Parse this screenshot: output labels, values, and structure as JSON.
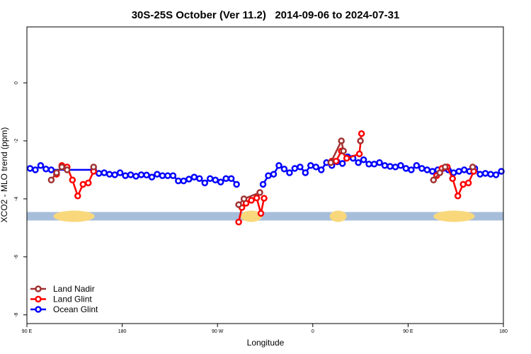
{
  "chart_data": {
    "type": "line",
    "title": "30S-25S October (Ver 11.2)   2014-09-06 to 2024-07-31",
    "x_label": "Longitude",
    "y_label": "XCO2 - MLO trend (ppm)",
    "xlim": [
      90,
      540
    ],
    "xticks": [
      {
        "value": 90,
        "label": "90 E"
      },
      {
        "value": 180,
        "label": "180"
      },
      {
        "value": 270,
        "label": "90 W"
      },
      {
        "value": 360,
        "label": "0"
      },
      {
        "value": 450,
        "label": "90 E"
      },
      {
        "value": 540,
        "label": "180"
      }
    ],
    "ylim": [
      -8.3,
      1.93
    ],
    "yticks": [
      0,
      -2,
      -4,
      -6,
      -8
    ],
    "mask": {
      "y": -4.6,
      "ocean_color": "#a7bedb",
      "land_color": "#f9d87c",
      "land": [
        [
          115,
          154
        ],
        [
          292,
          312
        ],
        [
          376,
          392
        ],
        [
          474,
          513
        ]
      ]
    },
    "legend": "bottom-left",
    "series": [
      {
        "name": "Land Nadir",
        "color": "#a03232",
        "x": [
          113,
          118,
          123,
          128,
          null,
          153,
          null,
          290,
          295,
          310,
          null,
          377,
          387,
          389,
          null,
          405,
          null,
          474,
          480,
          485,
          null,
          511
        ],
        "values": [
          -3.35,
          -3.1,
          -2.9,
          -3.0,
          null,
          -2.9,
          null,
          -4.2,
          -4.0,
          -3.78,
          null,
          -2.75,
          -2.0,
          -2.35,
          null,
          -2.0,
          null,
          -3.35,
          -3.1,
          -2.9,
          null,
          -2.9
        ]
      },
      {
        "name": "Land Glint",
        "color": "#ff0000",
        "x": [
          118,
          123,
          128,
          133,
          138,
          143,
          148,
          153,
          null,
          290,
          293,
          297,
          302,
          307,
          311,
          314,
          null,
          378,
          382,
          387,
          392,
          404,
          406,
          null,
          477,
          482,
          487,
          492,
          497,
          502,
          507,
          512
        ],
        "values": [
          -3.15,
          -2.85,
          -2.9,
          -3.35,
          -3.9,
          -3.5,
          -3.45,
          -3.05,
          null,
          -4.8,
          -4.3,
          -4.15,
          -4.05,
          -3.97,
          -4.5,
          -3.98,
          null,
          -2.7,
          -2.7,
          -2.35,
          -2.6,
          -2.45,
          -1.75,
          null,
          -3.2,
          -2.95,
          -2.9,
          -3.3,
          -3.9,
          -3.5,
          -3.45,
          -3.05
        ]
      },
      {
        "name": "Ocean Glint",
        "color": "#0000ff",
        "x": [
          93,
          98,
          103,
          108,
          113,
          153,
          158,
          163,
          168,
          173,
          178,
          183,
          188,
          193,
          198,
          203,
          208,
          213,
          218,
          223,
          228,
          233,
          238,
          243,
          248,
          253,
          258,
          263,
          268,
          273,
          278,
          283,
          288,
          null,
          313,
          318,
          323,
          328,
          333,
          338,
          343,
          348,
          353,
          358,
          363,
          368,
          373,
          378,
          383,
          388,
          393,
          398,
          403,
          408,
          413,
          418,
          423,
          428,
          433,
          438,
          443,
          448,
          453,
          458,
          463,
          468,
          473,
          478,
          483,
          488,
          493,
          498,
          503,
          508,
          513,
          518,
          523,
          528,
          533,
          538
        ],
        "values": [
          -2.95,
          -3.0,
          -2.85,
          -2.97,
          -3.0,
          -3.0,
          -3.12,
          -3.1,
          -3.15,
          -3.17,
          -3.1,
          -3.2,
          -3.17,
          -3.22,
          -3.17,
          -3.18,
          -3.25,
          -3.15,
          -3.2,
          -3.2,
          -3.2,
          -3.38,
          -3.38,
          -3.32,
          -3.25,
          -3.3,
          -3.45,
          -3.3,
          -3.35,
          -3.42,
          -3.3,
          -3.3,
          -3.5,
          null,
          -3.5,
          -3.2,
          -3.15,
          -2.85,
          -2.97,
          -3.1,
          -2.95,
          -2.9,
          -3.1,
          -2.85,
          -2.9,
          -3.0,
          -2.75,
          -2.85,
          -2.72,
          -2.78,
          -2.55,
          -2.6,
          -2.75,
          -2.65,
          -2.8,
          -2.8,
          -2.75,
          -2.85,
          -2.88,
          -2.9,
          -2.85,
          -2.95,
          -3.0,
          -2.85,
          -2.95,
          -3.0,
          -3.05,
          -3.0,
          -2.95,
          -3.0,
          -3.1,
          -3.05,
          -3.0,
          -3.05,
          -2.95,
          -3.15,
          -3.12,
          -3.15,
          -3.17,
          -3.05
        ]
      }
    ]
  }
}
